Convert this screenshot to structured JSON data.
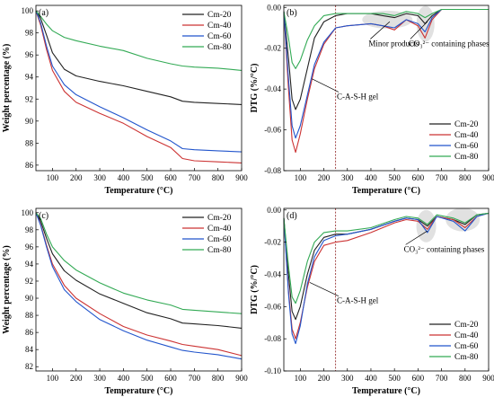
{
  "figure": {
    "colors": {
      "Cm-20": "#222222",
      "Cm-40": "#cc3333",
      "Cm-60": "#2255cc",
      "Cm-80": "#33aa55"
    }
  },
  "chart_data": [
    {
      "panel": "(a)",
      "type": "line",
      "xlabel": "Temperature (°C)",
      "ylabel": "Weight percentage (%)",
      "xlim": [
        30,
        900
      ],
      "ylim": [
        85.5,
        100.5
      ],
      "xticks": [
        "100",
        "200",
        "300",
        "400",
        "500",
        "600",
        "700",
        "800",
        "900"
      ],
      "yticks": [
        "86",
        "88",
        "90",
        "92",
        "94",
        "96",
        "98",
        "100"
      ],
      "legend_position": "top-right",
      "series": [
        {
          "name": "Cm-20",
          "x": [
            30,
            50,
            75,
            100,
            150,
            200,
            300,
            400,
            500,
            600,
            650,
            700,
            800,
            900
          ],
          "y": [
            100,
            99.3,
            97.8,
            96.2,
            94.7,
            94.1,
            93.6,
            93.2,
            92.7,
            92.2,
            91.8,
            91.7,
            91.6,
            91.5
          ]
        },
        {
          "name": "Cm-40",
          "x": [
            30,
            50,
            75,
            100,
            150,
            200,
            300,
            400,
            500,
            600,
            650,
            700,
            800,
            900
          ],
          "y": [
            100,
            98.7,
            96.5,
            94.6,
            92.7,
            91.7,
            90.7,
            89.8,
            88.6,
            87.6,
            86.6,
            86.4,
            86.3,
            86.2
          ]
        },
        {
          "name": "Cm-60",
          "x": [
            30,
            50,
            75,
            100,
            150,
            200,
            300,
            400,
            500,
            600,
            650,
            700,
            800,
            900
          ],
          "y": [
            100,
            98.9,
            96.8,
            95.0,
            93.3,
            92.4,
            91.3,
            90.3,
            89.2,
            88.2,
            87.5,
            87.4,
            87.3,
            87.2
          ]
        },
        {
          "name": "Cm-80",
          "x": [
            30,
            50,
            75,
            100,
            150,
            200,
            300,
            400,
            500,
            600,
            650,
            700,
            800,
            900
          ],
          "y": [
            100,
            99.5,
            98.8,
            98.2,
            97.6,
            97.3,
            96.8,
            96.4,
            95.7,
            95.2,
            95.0,
            94.9,
            94.8,
            94.6
          ]
        }
      ]
    },
    {
      "panel": "(b)",
      "type": "line",
      "xlabel": "Temperature (°C)",
      "ylabel": "DTG (%/°C)",
      "xlim": [
        30,
        900
      ],
      "ylim": [
        -0.08,
        0.001
      ],
      "xticks": [
        "100",
        "200",
        "300",
        "400",
        "500",
        "600",
        "700",
        "800",
        "900"
      ],
      "yticks": [
        "0.00",
        "-0.02",
        "-0.04",
        "-0.06",
        "-0.08"
      ],
      "legend_position": "bottom-right",
      "vline_x": 250,
      "annotations": [
        {
          "text": "C-A-S-H gel",
          "x": 255,
          "y": -0.045,
          "arrow_to_x": 150,
          "arrow_to_y": -0.035
        },
        {
          "text": "Minor products",
          "x": 390,
          "y": -0.019,
          "arrow_to_x": 480,
          "arrow_to_y": -0.007
        },
        {
          "text": "CO₃²⁻ containing phases",
          "x": 560,
          "y": -0.019,
          "arrow_to_x": 640,
          "arrow_to_y": -0.007
        }
      ],
      "series": [
        {
          "name": "Cm-20",
          "x": [
            30,
            50,
            65,
            80,
            100,
            130,
            160,
            200,
            250,
            300,
            400,
            450,
            500,
            550,
            600,
            630,
            660,
            700,
            800,
            900
          ],
          "y": [
            -0.002,
            -0.025,
            -0.045,
            -0.05,
            -0.045,
            -0.03,
            -0.015,
            -0.007,
            -0.004,
            -0.003,
            -0.003,
            -0.004,
            -0.005,
            -0.003,
            -0.004,
            -0.008,
            -0.004,
            -0.001,
            -0.001,
            -0.001
          ]
        },
        {
          "name": "Cm-40",
          "x": [
            30,
            50,
            65,
            80,
            100,
            130,
            160,
            200,
            250,
            300,
            400,
            450,
            500,
            550,
            600,
            630,
            660,
            700,
            800,
            900
          ],
          "y": [
            -0.002,
            -0.04,
            -0.065,
            -0.071,
            -0.062,
            -0.045,
            -0.03,
            -0.018,
            -0.01,
            -0.009,
            -0.008,
            -0.009,
            -0.011,
            -0.006,
            -0.009,
            -0.015,
            -0.006,
            -0.001,
            -0.001,
            -0.001
          ]
        },
        {
          "name": "Cm-60",
          "x": [
            30,
            50,
            65,
            80,
            100,
            130,
            160,
            200,
            250,
            300,
            400,
            450,
            500,
            550,
            600,
            630,
            660,
            700,
            800,
            900
          ],
          "y": [
            -0.002,
            -0.035,
            -0.058,
            -0.064,
            -0.058,
            -0.043,
            -0.028,
            -0.017,
            -0.01,
            -0.009,
            -0.008,
            -0.009,
            -0.01,
            -0.006,
            -0.008,
            -0.012,
            -0.005,
            -0.001,
            -0.001,
            -0.001
          ]
        },
        {
          "name": "Cm-80",
          "x": [
            30,
            50,
            65,
            80,
            100,
            130,
            160,
            200,
            250,
            300,
            400,
            450,
            500,
            550,
            600,
            630,
            660,
            700,
            800,
            900
          ],
          "y": [
            -0.002,
            -0.015,
            -0.027,
            -0.03,
            -0.026,
            -0.016,
            -0.009,
            -0.004,
            -0.003,
            -0.003,
            -0.003,
            -0.003,
            -0.004,
            -0.002,
            -0.003,
            -0.005,
            -0.003,
            -0.001,
            -0.001,
            -0.001
          ]
        }
      ]
    },
    {
      "panel": "(c)",
      "type": "line",
      "xlabel": "Temperature (°C)",
      "ylabel": "Weight percentage (%)",
      "xlim": [
        30,
        900
      ],
      "ylim": [
        81.5,
        100.5
      ],
      "xticks": [
        "100",
        "200",
        "300",
        "400",
        "500",
        "600",
        "700",
        "800",
        "900"
      ],
      "yticks": [
        "82",
        "84",
        "86",
        "88",
        "90",
        "92",
        "94",
        "96",
        "98",
        "100"
      ],
      "legend_position": "top-right",
      "series": [
        {
          "name": "Cm-20",
          "x": [
            30,
            50,
            75,
            100,
            150,
            200,
            300,
            400,
            500,
            600,
            650,
            700,
            800,
            900
          ],
          "y": [
            100,
            99,
            97,
            95.2,
            93.2,
            92.1,
            90.5,
            89.4,
            88.3,
            87.6,
            87.1,
            87.0,
            86.8,
            86.5
          ]
        },
        {
          "name": "Cm-40",
          "x": [
            30,
            50,
            75,
            100,
            150,
            200,
            300,
            400,
            500,
            600,
            650,
            700,
            800,
            900
          ],
          "y": [
            100,
            98.6,
            96.2,
            94.0,
            91.5,
            90.0,
            88.2,
            86.7,
            85.7,
            85.0,
            84.6,
            84.4,
            84.0,
            83.3
          ]
        },
        {
          "name": "Cm-60",
          "x": [
            30,
            50,
            75,
            100,
            150,
            200,
            300,
            400,
            500,
            600,
            650,
            700,
            800,
            900
          ],
          "y": [
            100,
            98.5,
            96.0,
            93.7,
            91.0,
            89.6,
            87.5,
            86.2,
            85.1,
            84.3,
            83.9,
            83.7,
            83.4,
            82.9
          ]
        },
        {
          "name": "Cm-80",
          "x": [
            30,
            50,
            75,
            100,
            150,
            200,
            300,
            400,
            500,
            600,
            650,
            700,
            800,
            900
          ],
          "y": [
            100,
            99.3,
            97.5,
            96.0,
            94.4,
            93.3,
            91.8,
            90.6,
            89.8,
            89.2,
            88.7,
            88.6,
            88.4,
            88.2
          ]
        }
      ]
    },
    {
      "panel": "(d)",
      "type": "line",
      "xlabel": "Temperature (°C)",
      "ylabel": "DTG (%/°C)",
      "xlim": [
        30,
        900
      ],
      "ylim": [
        -0.1,
        0.001
      ],
      "xticks": [
        "100",
        "200",
        "300",
        "400",
        "500",
        "600",
        "700",
        "800",
        "900"
      ],
      "yticks": [
        "0.00",
        "-0.02",
        "-0.04",
        "-0.06",
        "-0.08",
        "-0.10"
      ],
      "legend_position": "bottom-right",
      "vline_x": 250,
      "annotations": [
        {
          "text": "C-A-S-H gel",
          "x": 255,
          "y": -0.058,
          "arrow_to_x": 140,
          "arrow_to_y": -0.045
        },
        {
          "text": "CO₃²⁻ containing phases",
          "x": 540,
          "y": -0.026,
          "arrow_to_x": 640,
          "arrow_to_y": -0.013
        }
      ],
      "series": [
        {
          "name": "Cm-20",
          "x": [
            30,
            50,
            65,
            80,
            100,
            130,
            160,
            200,
            250,
            300,
            400,
            500,
            550,
            600,
            640,
            680,
            750,
            800,
            850,
            900
          ],
          "y": [
            -0.005,
            -0.04,
            -0.063,
            -0.068,
            -0.06,
            -0.04,
            -0.025,
            -0.017,
            -0.015,
            -0.015,
            -0.012,
            -0.007,
            -0.005,
            -0.006,
            -0.01,
            -0.004,
            -0.006,
            -0.009,
            -0.003,
            -0.002
          ]
        },
        {
          "name": "Cm-40",
          "x": [
            30,
            50,
            65,
            80,
            100,
            130,
            160,
            200,
            250,
            300,
            400,
            500,
            550,
            600,
            640,
            680,
            750,
            800,
            850,
            900
          ],
          "y": [
            -0.005,
            -0.05,
            -0.074,
            -0.08,
            -0.07,
            -0.048,
            -0.032,
            -0.022,
            -0.02,
            -0.019,
            -0.014,
            -0.008,
            -0.006,
            -0.007,
            -0.012,
            -0.004,
            -0.006,
            -0.011,
            -0.004,
            -0.002
          ]
        },
        {
          "name": "Cm-60",
          "x": [
            30,
            50,
            65,
            80,
            100,
            130,
            160,
            200,
            250,
            300,
            400,
            500,
            550,
            600,
            640,
            680,
            750,
            800,
            850,
            900
          ],
          "y": [
            -0.005,
            -0.052,
            -0.077,
            -0.083,
            -0.072,
            -0.046,
            -0.029,
            -0.019,
            -0.016,
            -0.015,
            -0.012,
            -0.007,
            -0.005,
            -0.006,
            -0.014,
            -0.004,
            -0.007,
            -0.013,
            -0.004,
            -0.002
          ]
        },
        {
          "name": "Cm-80",
          "x": [
            30,
            50,
            65,
            80,
            100,
            130,
            160,
            200,
            250,
            300,
            400,
            500,
            550,
            600,
            640,
            680,
            750,
            800,
            850,
            900
          ],
          "y": [
            -0.005,
            -0.035,
            -0.054,
            -0.058,
            -0.05,
            -0.032,
            -0.02,
            -0.014,
            -0.013,
            -0.013,
            -0.011,
            -0.006,
            -0.004,
            -0.005,
            -0.009,
            -0.003,
            -0.005,
            -0.008,
            -0.003,
            -0.002
          ]
        }
      ]
    }
  ]
}
